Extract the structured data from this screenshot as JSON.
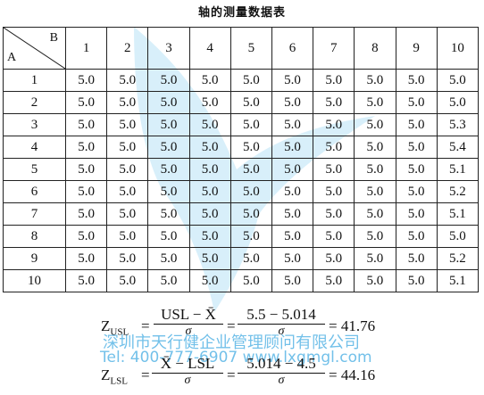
{
  "title": "轴的测量数据表",
  "table": {
    "corner_b": "B",
    "corner_a": "A",
    "columns": [
      "1",
      "2",
      "3",
      "4",
      "5",
      "6",
      "7",
      "8",
      "9",
      "10"
    ],
    "rows": [
      {
        "label": "1",
        "values": [
          "5.0",
          "5.0",
          "5.0",
          "5.0",
          "5.0",
          "5.0",
          "5.0",
          "5.0",
          "5.0",
          "5.0"
        ]
      },
      {
        "label": "2",
        "values": [
          "5.0",
          "5.0",
          "5.0",
          "5.0",
          "5.0",
          "5.0",
          "5.0",
          "5.0",
          "5.0",
          "5.0"
        ]
      },
      {
        "label": "3",
        "values": [
          "5.0",
          "5.0",
          "5.0",
          "5.0",
          "5.0",
          "5.0",
          "5.0",
          "5.0",
          "5.0",
          "5.3"
        ]
      },
      {
        "label": "4",
        "values": [
          "5.0",
          "5.0",
          "5.0",
          "5.0",
          "5.0",
          "5.0",
          "5.0",
          "5.0",
          "5.0",
          "5.4"
        ]
      },
      {
        "label": "5",
        "values": [
          "5.0",
          "5.0",
          "5.0",
          "5.0",
          "5.0",
          "5.0",
          "5.0",
          "5.0",
          "5.0",
          "5.1"
        ]
      },
      {
        "label": "6",
        "values": [
          "5.0",
          "5.0",
          "5.0",
          "5.0",
          "5.0",
          "5.0",
          "5.0",
          "5.0",
          "5.0",
          "5.2"
        ]
      },
      {
        "label": "7",
        "values": [
          "5.0",
          "5.0",
          "5.0",
          "5.0",
          "5.0",
          "5.0",
          "5.0",
          "5.0",
          "5.0",
          "5.1"
        ]
      },
      {
        "label": "8",
        "values": [
          "5.0",
          "5.0",
          "5.0",
          "5.0",
          "5.0",
          "5.0",
          "5.0",
          "5.0",
          "5.0",
          "5.0"
        ]
      },
      {
        "label": "9",
        "values": [
          "5.0",
          "5.0",
          "5.0",
          "5.0",
          "5.0",
          "5.0",
          "5.0",
          "5.0",
          "5.0",
          "5.2"
        ]
      },
      {
        "label": "10",
        "values": [
          "5.0",
          "5.0",
          "5.0",
          "5.0",
          "5.0",
          "5.0",
          "5.0",
          "5.0",
          "5.0",
          "5.1"
        ]
      }
    ]
  },
  "formula_usl": {
    "lhs": "Z",
    "lhs_sub": "USL",
    "eq1": "=",
    "frac1_num": "USL − X̄",
    "frac1_den": "σ",
    "eq2": "=",
    "frac2_num": "5.5 − 5.014",
    "frac2_den": "σ",
    "result": "= 41.76"
  },
  "formula_lsl": {
    "lhs": "Z",
    "lhs_sub": "LSL",
    "eq1": "=",
    "frac1_num": "X̄ − LSL",
    "frac1_den": "σ",
    "eq2": "=",
    "frac2_num": "5.014 − 4.5",
    "frac2_den": "σ",
    "result": "= 44.16"
  },
  "watermark": {
    "line1": "深圳市天行健企业管理顾问有限公司",
    "line2": "Tel: 400-777-6907 www.lxgmgl.com"
  },
  "colors": {
    "watermark": "#5ab6e6"
  }
}
